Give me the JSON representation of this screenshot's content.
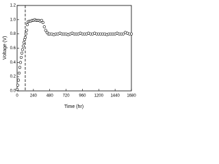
{
  "chart_data": {
    "type": "scatter",
    "x_label": "Time (hr)",
    "y_label": "Voltage (V)",
    "x": [
      0,
      10,
      20,
      30,
      40,
      50,
      60,
      70,
      80,
      90,
      100,
      110,
      120,
      130,
      140,
      150,
      160,
      180,
      200,
      220,
      240,
      260,
      280,
      300,
      320,
      340,
      360,
      380,
      400,
      420,
      440,
      460,
      480,
      510,
      540,
      570,
      600,
      630,
      660,
      690,
      720,
      750,
      780,
      810,
      840,
      870,
      900,
      930,
      960,
      990,
      1020,
      1050,
      1080,
      1110,
      1140,
      1170,
      1200,
      1230,
      1260,
      1290,
      1320,
      1350,
      1380,
      1410,
      1440,
      1470,
      1500,
      1530,
      1560,
      1590,
      1620,
      1650,
      1680
    ],
    "y": [
      0.02,
      0.08,
      0.15,
      0.25,
      0.33,
      0.4,
      0.47,
      0.53,
      0.58,
      0.63,
      0.68,
      0.72,
      0.75,
      0.8,
      0.85,
      0.93,
      0.97,
      0.98,
      0.98,
      0.99,
      0.99,
      1.0,
      0.99,
      0.99,
      0.99,
      0.98,
      0.99,
      0.96,
      0.9,
      0.85,
      0.82,
      0.8,
      0.8,
      0.8,
      0.79,
      0.8,
      0.8,
      0.81,
      0.8,
      0.8,
      0.8,
      0.79,
      0.8,
      0.81,
      0.8,
      0.8,
      0.8,
      0.81,
      0.8,
      0.8,
      0.8,
      0.81,
      0.8,
      0.8,
      0.81,
      0.8,
      0.8,
      0.8,
      0.8,
      0.8,
      0.79,
      0.8,
      0.8,
      0.8,
      0.8,
      0.81,
      0.8,
      0.8,
      0.8,
      0.82,
      0.81,
      0.8,
      0.8
    ],
    "color": "#000000",
    "reference_line_x": 120,
    "xlim": [
      0,
      1680
    ],
    "xticks": [
      0,
      240,
      480,
      720,
      960,
      1200,
      1440,
      1680
    ],
    "ylim": [
      0,
      1.2
    ],
    "yticks": [
      {
        "value": 0,
        "label": "0.0"
      },
      0.2,
      0.4,
      0.6,
      0.8,
      {
        "value": 1,
        "label": "1.0"
      },
      1.2
    ]
  }
}
